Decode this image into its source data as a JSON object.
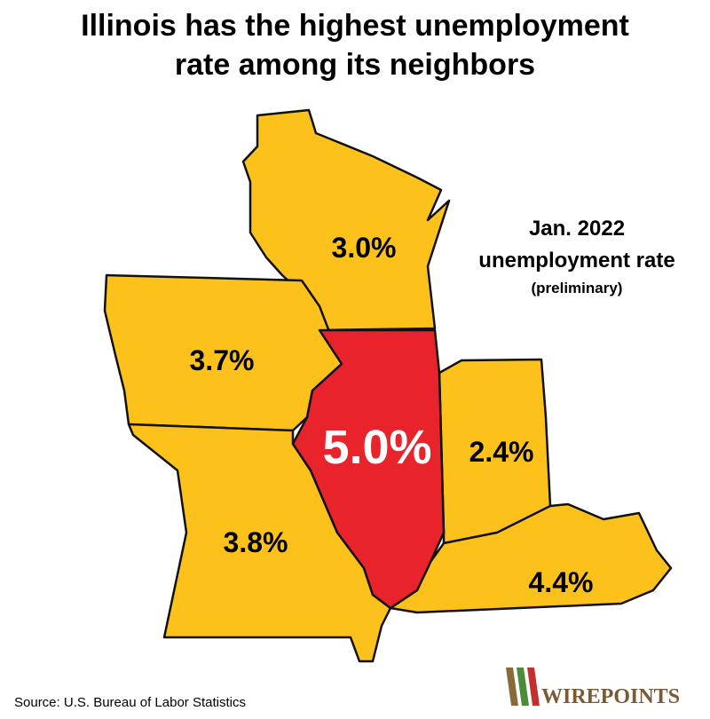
{
  "title": [
    "Illinois has the highest unemployment",
    "rate among its neighbors"
  ],
  "note": [
    "Jan. 2022",
    "unemployment rate",
    "(preliminary)"
  ],
  "labels": [
    "3.0%",
    "3.7%",
    "5.0%",
    "2.4%",
    "3.8%",
    "4.4%"
  ],
  "source": "Source: U.S. Bureau of Labor Statistics",
  "logo": "WIREPOINTS"
}
